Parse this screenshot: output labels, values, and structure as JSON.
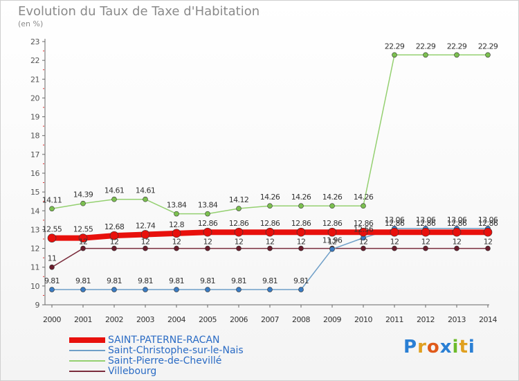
{
  "title": "Evolution du Taux de Taxe d'Habitation",
  "subtitle": "(en %)",
  "brand": {
    "letters": [
      "P",
      "r",
      "o",
      "x",
      "i",
      "t",
      "i"
    ],
    "colors": [
      "#2a7fd4",
      "#e0a020",
      "#e05a1a",
      "#2a7fd4",
      "#6cbb2a",
      "#e0a020",
      "#2a7fd4"
    ]
  },
  "chart_data": {
    "type": "line",
    "x": [
      "2000",
      "2001",
      "2002",
      "2003",
      "2004",
      "2005",
      "2006",
      "2007",
      "2008",
      "2009",
      "2010",
      "2011",
      "2012",
      "2013",
      "2014"
    ],
    "ylim": [
      9,
      23
    ],
    "yticks": [
      "9",
      "10",
      "11",
      "12",
      "13",
      "14",
      "15",
      "16",
      "17",
      "18",
      "19",
      "20",
      "21",
      "22",
      "23"
    ],
    "grid": false,
    "legend_position": "bottom-left",
    "series": [
      {
        "name": "SAINT-PATERNE-RACAN",
        "color": "#e8100c",
        "marker": "#e8100c",
        "width": 8,
        "values": [
          12.55,
          12.55,
          12.68,
          12.74,
          12.8,
          12.86,
          12.86,
          12.86,
          12.86,
          12.86,
          12.86,
          12.86,
          12.86,
          12.86,
          12.86
        ],
        "labels": [
          "12.55",
          "12.55",
          "12.68",
          "12.74",
          "12.8",
          "12.86",
          "12.86",
          "12.86",
          "12.86",
          "12.86",
          "12.86",
          "12.86",
          "12.86",
          "12.86",
          "12.86"
        ]
      },
      {
        "name": "Saint-Christophe-sur-le-Nais",
        "color": "#6f9fc8",
        "marker": "#3a7cc4",
        "width": 1.5,
        "values": [
          9.81,
          9.81,
          9.81,
          9.81,
          9.81,
          9.81,
          9.81,
          9.81,
          9.81,
          11.96,
          12.56,
          13.06,
          13.06,
          13.06,
          13.06
        ],
        "labels": [
          "9.81",
          "9.81",
          "9.81",
          "9.81",
          "9.81",
          "9.81",
          "9.81",
          "9.81",
          "9.81",
          "11.96",
          "12.56",
          "13.06",
          "13.06",
          "13.06",
          "13.06"
        ]
      },
      {
        "name": "Saint-Pierre-de-Chevillé",
        "color": "#94d070",
        "marker": "#7cc050",
        "width": 1.5,
        "values": [
          14.11,
          14.39,
          14.61,
          14.61,
          13.84,
          13.84,
          14.12,
          14.26,
          14.26,
          14.26,
          14.26,
          22.29,
          22.29,
          22.29,
          22.29
        ],
        "labels": [
          "14.11",
          "14.39",
          "14.61",
          "14.61",
          "13.84",
          "13.84",
          "14.12",
          "14.26",
          "14.26",
          "14.26",
          "14.26",
          "22.29",
          "22.29",
          "22.29",
          "22.29"
        ]
      },
      {
        "name": "Villebourg",
        "color": "#7a2c3c",
        "marker": "#6a1c2c",
        "width": 1.5,
        "values": [
          11,
          12,
          12,
          12,
          12,
          12,
          12,
          12,
          12,
          12,
          12,
          12,
          12,
          12,
          12
        ],
        "labels": [
          "11",
          "12",
          "12",
          "12",
          "12",
          "12",
          "12",
          "12",
          "12",
          "12",
          "12",
          "12",
          "12",
          "12",
          "12"
        ]
      }
    ]
  }
}
